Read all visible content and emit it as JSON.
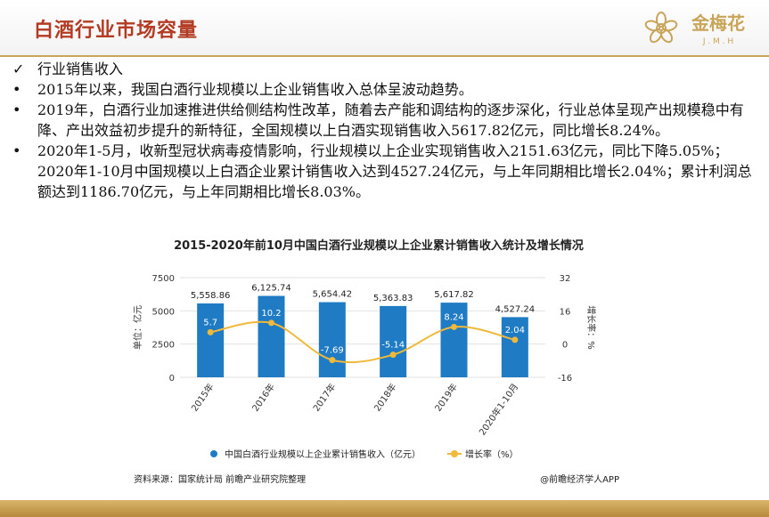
{
  "header": {
    "title": "白酒行业市场容量",
    "logo": "金梅花",
    "logo_sub": "J . M . H"
  },
  "bullets": [
    "行业销售收入",
    "2015年以来，我国白酒行业规模以上企业销售收入总体呈波动趋势。",
    "2019年，白酒行业加速推进供给侧结构性改革，随着去产能和调结构的逐步深化，行业总体呈现产出规模稳中有降、产出效益初步提升的新特征，全国规模以上白酒实现销售收入5617.82亿元，同比增长8.24%。",
    "2020年1-5月，收新型冠状病毒疫情影响，行业规模以上企业实现销售收入2151.63亿元，同比下降5.05%；2020年1-10月中国规模以上白酒企业累计销售收入达到4527.24亿元，与上年同期相比增长2.04%；累计利润总额达到1186.70亿元，与上年同期相比增长8.03%。"
  ],
  "chart_data": {
    "type": "bar",
    "title": "2015-2020年前10月中国白酒行业规模以上企业累计销售收入统计及增长情况",
    "categories": [
      "2015年",
      "2016年",
      "2017年",
      "2018年",
      "2019年",
      "2020年1-10月"
    ],
    "series": [
      {
        "name": "中国白酒行业规模以上企业累计销售收入（亿元）",
        "type": "bar",
        "color": "#1f7bc4",
        "values": [
          5558.86,
          6125.74,
          5654.42,
          5363.83,
          5617.82,
          4527.24
        ],
        "value_labels": [
          "5,558.86",
          "6,125.74",
          "5,654.42",
          "5,363.83",
          "5,617.82",
          "4,527.24"
        ]
      },
      {
        "name": "增长率（%）",
        "type": "line",
        "axis": "y2",
        "color": "#f0b93a",
        "values": [
          5.7,
          10.2,
          -7.69,
          -5.14,
          8.24,
          2.04
        ]
      }
    ],
    "ylim": [
      0,
      7500
    ],
    "yticks": [
      0,
      2500,
      5000,
      7500
    ],
    "y2lim": [
      -16,
      32
    ],
    "y2ticks": [
      -16,
      0,
      16,
      32
    ],
    "ylabel": "单位：亿元",
    "y2label": "增长率：%",
    "source": "资料来源：国家统计局 前瞻产业研究院整理",
    "watermark": "@前瞻经济学人APP"
  }
}
